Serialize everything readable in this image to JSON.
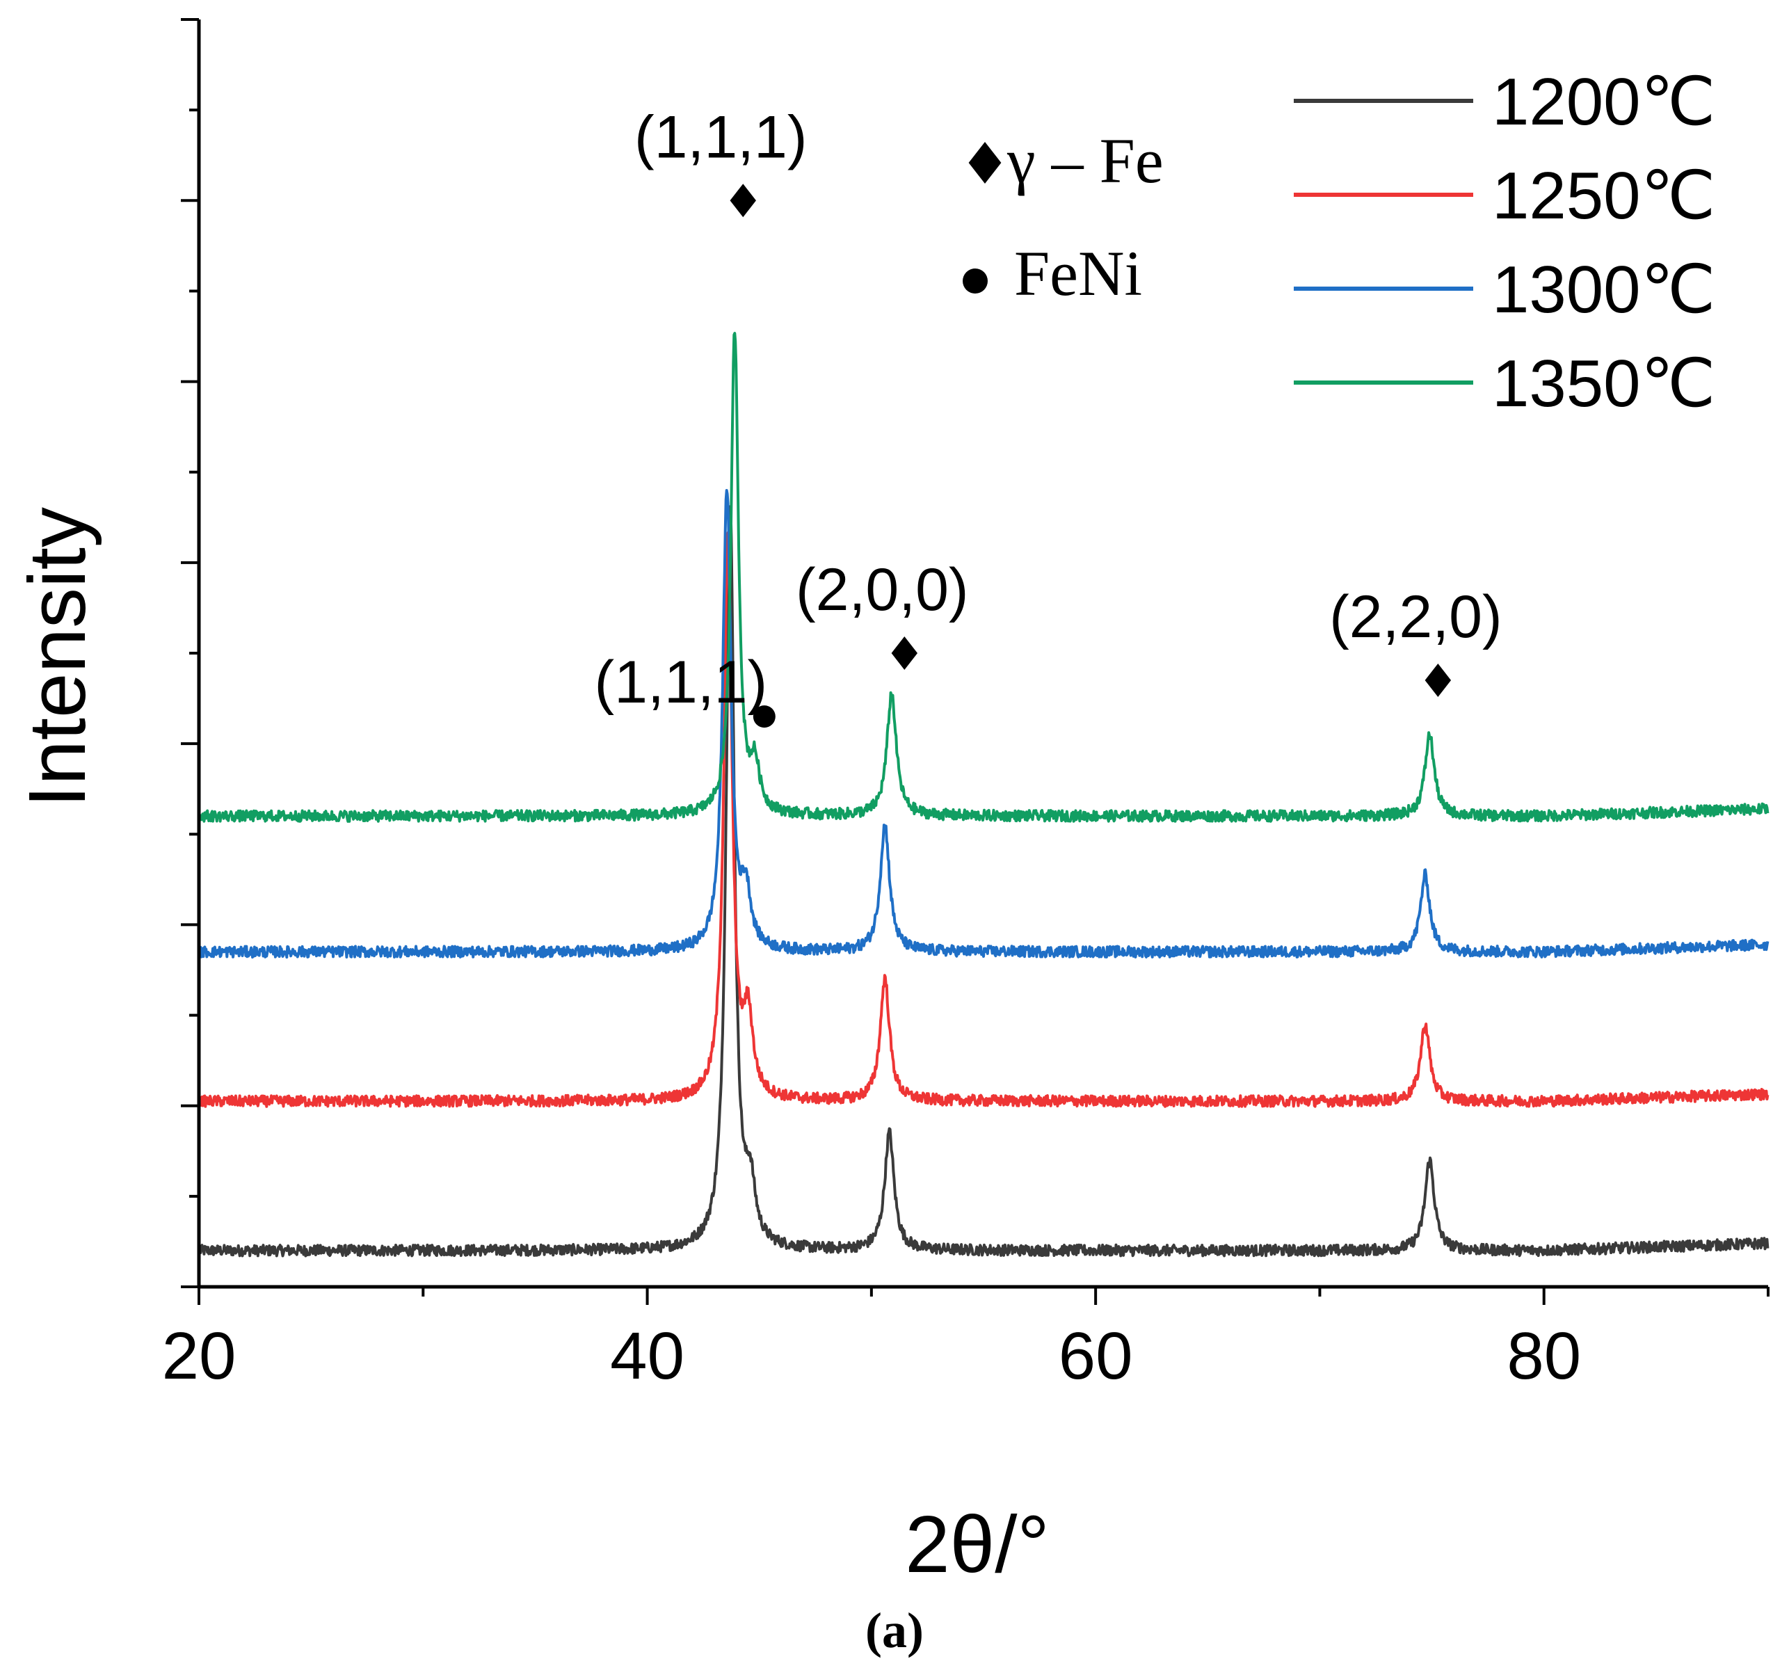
{
  "chart_data": {
    "type": "line",
    "xlabel": "2θ/°",
    "ylabel": "Intensity",
    "xlim": [
      20,
      90
    ],
    "ylim": [
      0,
      14
    ],
    "x_ticks": [
      20,
      40,
      60,
      80
    ],
    "x_tick_labels": [
      "20",
      "40",
      "60",
      "80"
    ],
    "series": [
      {
        "name": "1200℃",
        "color": "#3a3a3a",
        "baseline": 0.4,
        "peaks": [
          [
            43.7,
            8.2,
            0.22
          ],
          [
            44.6,
            0.6,
            0.25
          ],
          [
            50.8,
            1.3,
            0.25
          ],
          [
            74.9,
            1.0,
            0.25
          ]
        ]
      },
      {
        "name": "1250℃",
        "color": "#ee3535",
        "baseline": 2.05,
        "peaks": [
          [
            43.6,
            6.2,
            0.22
          ],
          [
            44.5,
            0.85,
            0.25
          ],
          [
            50.6,
            1.35,
            0.25
          ],
          [
            74.7,
            0.85,
            0.25
          ]
        ]
      },
      {
        "name": "1300℃",
        "color": "#1f6fc6",
        "baseline": 3.7,
        "peaks": [
          [
            43.55,
            5.1,
            0.22
          ],
          [
            44.4,
            0.6,
            0.25
          ],
          [
            50.6,
            1.4,
            0.25
          ],
          [
            74.7,
            0.85,
            0.25
          ]
        ]
      },
      {
        "name": "1350℃",
        "color": "#119e62",
        "baseline": 5.2,
        "peaks": [
          [
            43.9,
            5.35,
            0.2
          ],
          [
            44.8,
            0.5,
            0.25
          ],
          [
            50.9,
            1.35,
            0.25
          ],
          [
            74.9,
            0.9,
            0.25
          ]
        ]
      }
    ],
    "annotations": [
      {
        "text": "(1,1,1)",
        "marker": "diamond",
        "x": 43.9,
        "y": 12.0
      },
      {
        "text": "(1,1,1)",
        "marker": "circle",
        "x": 44.6,
        "y": 6.3
      },
      {
        "text": "(2,0,0)",
        "marker": "diamond",
        "x": 51.1,
        "y": 7.0
      },
      {
        "text": "(2,2,0)",
        "marker": "diamond",
        "x": 74.9,
        "y": 6.7
      }
    ],
    "phase_legend": [
      {
        "marker": "diamond",
        "label": "γ – Fe"
      },
      {
        "marker": "circle",
        "label": "FeNi"
      }
    ],
    "legend_position": "top-right",
    "panel_label": "(a)"
  }
}
